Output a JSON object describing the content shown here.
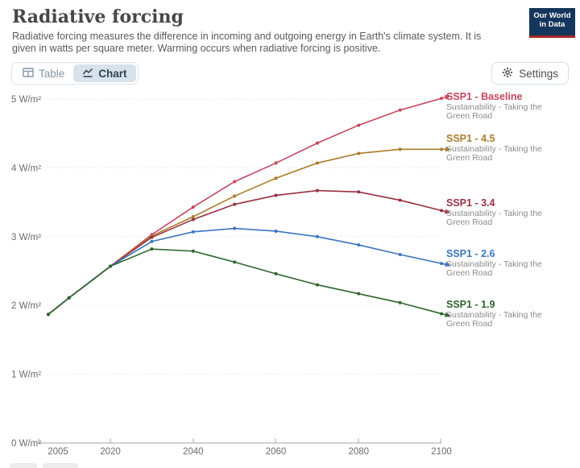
{
  "header": {
    "title": "Radiative forcing",
    "subtitle": "Radiative forcing measures the difference in incoming and outgoing energy in Earth's climate system. It is given in watts per square meter. Warming occurs when radiative forcing is positive.",
    "logo": {
      "line1": "Our World",
      "line2": "in Data"
    }
  },
  "toolbar": {
    "tabs": [
      {
        "label": "Table",
        "active": false
      },
      {
        "label": "Chart",
        "active": true
      }
    ],
    "settings_label": "Settings"
  },
  "chart_data": {
    "type": "line",
    "title": "Radiative forcing",
    "unit": "W/m²",
    "x": [
      2005,
      2010,
      2020,
      2030,
      2040,
      2050,
      2060,
      2070,
      2080,
      2090,
      2100
    ],
    "series": [
      {
        "name": "SSP1 - Baseline",
        "subtitle": "Sustainability - Taking the Green Road",
        "color": "#c6465d",
        "values": [
          1.87,
          2.11,
          2.57,
          3.03,
          3.43,
          3.8,
          4.07,
          4.36,
          4.62,
          4.84,
          5.01
        ]
      },
      {
        "name": "SSP1 - 4.5",
        "subtitle": "Sustainability - Taking the Green Road",
        "color": "#ab7c2c",
        "values": [
          1.87,
          2.11,
          2.57,
          3.01,
          3.29,
          3.59,
          3.85,
          4.07,
          4.21,
          4.27,
          4.27
        ]
      },
      {
        "name": "SSP1 - 3.4",
        "subtitle": "Sustainability - Taking the Green Road",
        "color": "#993041",
        "values": [
          1.87,
          2.11,
          2.57,
          2.99,
          3.25,
          3.47,
          3.6,
          3.67,
          3.65,
          3.53,
          3.38
        ]
      },
      {
        "name": "SSP1 - 2.6",
        "subtitle": "Sustainability - Taking the Green Road",
        "color": "#3c75be",
        "values": [
          1.87,
          2.11,
          2.57,
          2.93,
          3.07,
          3.12,
          3.08,
          3.0,
          2.88,
          2.74,
          2.61
        ]
      },
      {
        "name": "SSP1 - 1.9",
        "subtitle": "Sustainability - Taking the Green Road",
        "color": "#2d662c",
        "values": [
          1.87,
          2.11,
          2.57,
          2.82,
          2.79,
          2.63,
          2.46,
          2.3,
          2.17,
          2.04,
          1.88
        ]
      }
    ],
    "y_ticks": [
      {
        "v": 0,
        "label": "0 W/m²"
      },
      {
        "v": 1,
        "label": "1 W/m²"
      },
      {
        "v": 2,
        "label": "2 W/m²"
      },
      {
        "v": 3,
        "label": "3 W/m²"
      },
      {
        "v": 4,
        "label": "4 W/m²"
      },
      {
        "v": 5,
        "label": "5 W/m²"
      }
    ],
    "x_ticks": [
      {
        "year": 2005,
        "label": "2005"
      },
      {
        "year": 2020,
        "label": "2020"
      },
      {
        "year": 2040,
        "label": "2040"
      },
      {
        "year": 2060,
        "label": "2060"
      },
      {
        "year": 2080,
        "label": "2080"
      },
      {
        "year": 2100,
        "label": "2100"
      }
    ],
    "ylim": [
      0,
      5
    ],
    "xlim": [
      2005,
      2100
    ],
    "grid": true,
    "legend_position": "right"
  }
}
